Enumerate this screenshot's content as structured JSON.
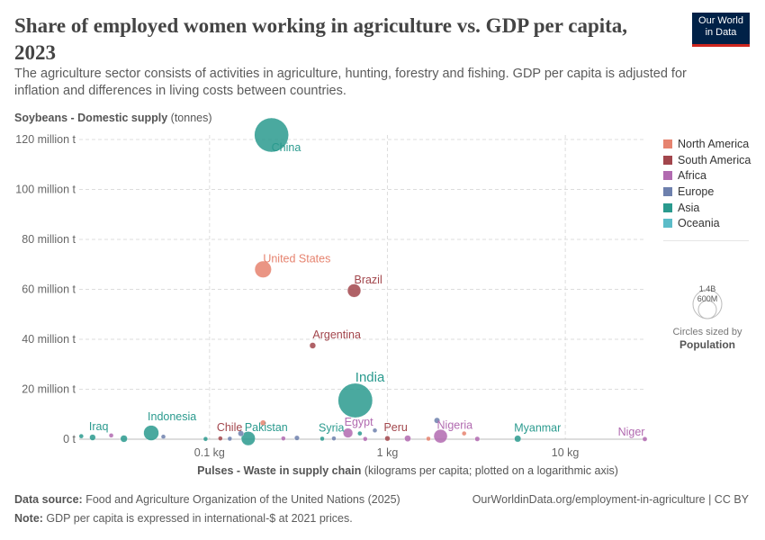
{
  "header": {
    "title": "Share of employed women working in agriculture vs. GDP per capita, 2023",
    "subtitle": "The agriculture sector consists of activities in agriculture, hunting, forestry and fishing. GDP per capita is adjusted for inflation and differences in living costs between countries.",
    "logo_line1": "Our World",
    "logo_line2": "in Data"
  },
  "chart_data": {
    "type": "scatter",
    "xlabel_bold": "Pulses - Waste in supply chain",
    "xlabel_rest": " (kilograms per capita; plotted on a logarithmic axis)",
    "ylabel_bold": "Soybeans - Domestic supply",
    "ylabel_rest": " (tonnes)",
    "x_scale": "log",
    "xlim": [
      0.0185,
      28.5
    ],
    "ylim": [
      0,
      120000000
    ],
    "x_ticks": [
      {
        "v": 0.1,
        "label": "0.1 kg"
      },
      {
        "v": 1,
        "label": "1 kg"
      },
      {
        "v": 10,
        "label": "10 kg"
      }
    ],
    "y_ticks": [
      {
        "v": 0,
        "label": "0 t"
      },
      {
        "v": 20000000,
        "label": "20 million t"
      },
      {
        "v": 40000000,
        "label": "40 million t"
      },
      {
        "v": 60000000,
        "label": "60 million t"
      },
      {
        "v": 80000000,
        "label": "80 million t"
      },
      {
        "v": 100000000,
        "label": "100 million t"
      },
      {
        "v": 120000000,
        "label": "120 million t"
      }
    ],
    "grid": true,
    "legend_placement": "right",
    "colors": {
      "North America": "#e6836f",
      "South America": "#a2464c",
      "Africa": "#b16ab0",
      "Europe": "#6d80ad",
      "Asia": "#2a9a8e",
      "Oceania": "#5bbcc8"
    },
    "legend": [
      "North America",
      "South America",
      "Africa",
      "Europe",
      "Asia",
      "Oceania"
    ],
    "size_legend": {
      "large": "1.4B",
      "small": "600M",
      "note": "Circles sized by",
      "variable": "Population"
    },
    "points": [
      {
        "name": "China",
        "x": 0.223,
        "y": 121800000,
        "region": "Asia",
        "pop": 1410,
        "label": true
      },
      {
        "name": "United States",
        "x": 0.2,
        "y": 68000000,
        "region": "North America",
        "pop": 335,
        "label": true
      },
      {
        "name": "Brazil",
        "x": 0.65,
        "y": 59500000,
        "region": "South America",
        "pop": 216,
        "label": true
      },
      {
        "name": "Argentina",
        "x": 0.38,
        "y": 37500000,
        "region": "South America",
        "pop": 46,
        "label": true
      },
      {
        "name": "India",
        "x": 0.66,
        "y": 15500000,
        "region": "Asia",
        "pop": 1430,
        "label": true
      },
      {
        "name": "Indonesia",
        "x": 0.047,
        "y": 2500000,
        "region": "Asia",
        "pop": 278,
        "label": true
      },
      {
        "name": "Iraq",
        "x": 0.022,
        "y": 700000,
        "region": "Asia",
        "pop": 45,
        "label": true
      },
      {
        "name": "Chile",
        "x": 0.115,
        "y": 300000,
        "region": "South America",
        "pop": 20,
        "label": true
      },
      {
        "name": "Pakistan",
        "x": 0.165,
        "y": 300000,
        "region": "Asia",
        "pop": 240,
        "label": true
      },
      {
        "name": "Syria",
        "x": 0.43,
        "y": 200000,
        "region": "Asia",
        "pop": 23,
        "label": true
      },
      {
        "name": "Egypt",
        "x": 0.6,
        "y": 2500000,
        "region": "Africa",
        "pop": 112,
        "label": true
      },
      {
        "name": "Peru",
        "x": 1.0,
        "y": 300000,
        "region": "South America",
        "pop": 34,
        "label": true
      },
      {
        "name": "Nigeria",
        "x": 1.99,
        "y": 1200000,
        "region": "Africa",
        "pop": 224,
        "label": true
      },
      {
        "name": "Myanmar",
        "x": 5.4,
        "y": 200000,
        "region": "Asia",
        "pop": 54,
        "label": true
      },
      {
        "name": "Niger",
        "x": 28,
        "y": 50000,
        "region": "Africa",
        "pop": 27,
        "label": true
      },
      {
        "x": 0.019,
        "y": 1200000,
        "region": "Asia",
        "pop": 10
      },
      {
        "x": 0.033,
        "y": 200000,
        "region": "Asia",
        "pop": 60
      },
      {
        "x": 0.028,
        "y": 1500000,
        "region": "Africa",
        "pop": 20
      },
      {
        "x": 0.055,
        "y": 1000000,
        "region": "Europe",
        "pop": 5
      },
      {
        "x": 0.15,
        "y": 2300000,
        "region": "Europe",
        "pop": 40
      },
      {
        "x": 0.2,
        "y": 6500000,
        "region": "North America",
        "pop": 40
      },
      {
        "x": 0.26,
        "y": 300000,
        "region": "Africa",
        "pop": 10
      },
      {
        "x": 0.31,
        "y": 500000,
        "region": "Europe",
        "pop": 30
      },
      {
        "x": 0.5,
        "y": 300000,
        "region": "Europe",
        "pop": 15
      },
      {
        "x": 0.7,
        "y": 2300000,
        "region": "Asia",
        "pop": 25
      },
      {
        "x": 0.85,
        "y": 3500000,
        "region": "Europe",
        "pop": 10
      },
      {
        "x": 1.3,
        "y": 300000,
        "region": "Africa",
        "pop": 50
      },
      {
        "x": 1.9,
        "y": 7500000,
        "region": "Europe",
        "pop": 40
      },
      {
        "x": 2.7,
        "y": 2300000,
        "region": "North America",
        "pop": 10
      },
      {
        "x": 3.2,
        "y": 100000,
        "region": "Africa",
        "pop": 30
      },
      {
        "x": 1.7,
        "y": 200000,
        "region": "North America",
        "pop": 5
      },
      {
        "x": 0.75,
        "y": 100000,
        "region": "Africa",
        "pop": 20
      },
      {
        "x": 0.095,
        "y": 100000,
        "region": "Asia",
        "pop": 5
      },
      {
        "x": 0.13,
        "y": 200000,
        "region": "Europe",
        "pop": 10
      }
    ]
  },
  "footer": {
    "source_label": "Data source:",
    "source": " Food and Agriculture Organization of the United Nations (2025)",
    "url": "OurWorldinData.org/employment-in-agriculture | CC BY",
    "note_label": "Note:",
    "note": " GDP per capita is expressed in international-$ at 2021 prices."
  }
}
